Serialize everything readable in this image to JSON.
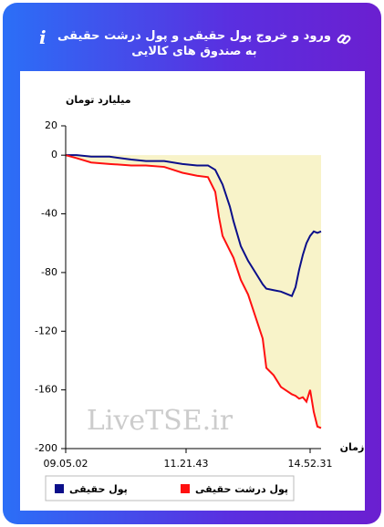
{
  "chart_data": {
    "type": "line",
    "title": "ورود و خروج پول حقیقی و پول درشت حقیقی به صندوق های کالایی",
    "ylabel": "میلیارد تومان",
    "xlabel": "زمان",
    "watermark": "LiveTSE.ir",
    "x": [
      0,
      3,
      7,
      12,
      18,
      22,
      27,
      32,
      36,
      39,
      41,
      42,
      43,
      45,
      46,
      48,
      50,
      52,
      54,
      55,
      57,
      59,
      62,
      63,
      64,
      65,
      66,
      67,
      68,
      69,
      70
    ],
    "series": [
      {
        "name": "پول حقیقی",
        "color": "#0b0f8a",
        "values": [
          0,
          0,
          -1,
          -1,
          -3,
          -4,
          -4,
          -6,
          -7,
          -7,
          -10,
          -15,
          -20,
          -35,
          -45,
          -62,
          -72,
          -80,
          -88,
          -91,
          -92,
          -93,
          -96,
          -90,
          -78,
          -68,
          -60,
          -55,
          -52,
          -53,
          -52
        ]
      },
      {
        "name": "پول درشت حقیقی",
        "color": "#ff1010",
        "area_fill": "#f8f3c9",
        "values": [
          0,
          -2,
          -5,
          -6,
          -7,
          -7,
          -8,
          -12,
          -14,
          -15,
          -25,
          -42,
          -55,
          -65,
          -70,
          -85,
          -95,
          -110,
          -125,
          -145,
          -150,
          -158,
          -163,
          -164,
          -166,
          -165,
          -168,
          -160,
          -175,
          -185,
          -186
        ]
      }
    ],
    "xlim": [
      0,
      70
    ],
    "xticks": [
      {
        "value": 0,
        "label": "09.05.02"
      },
      {
        "value": 33,
        "label": "11.21.43"
      },
      {
        "value": 67,
        "label": "14.52.31"
      }
    ],
    "ylim": [
      -200,
      20
    ],
    "yticks": [
      20,
      0,
      -40,
      -80,
      -120,
      -160,
      -200
    ],
    "grid": false
  }
}
